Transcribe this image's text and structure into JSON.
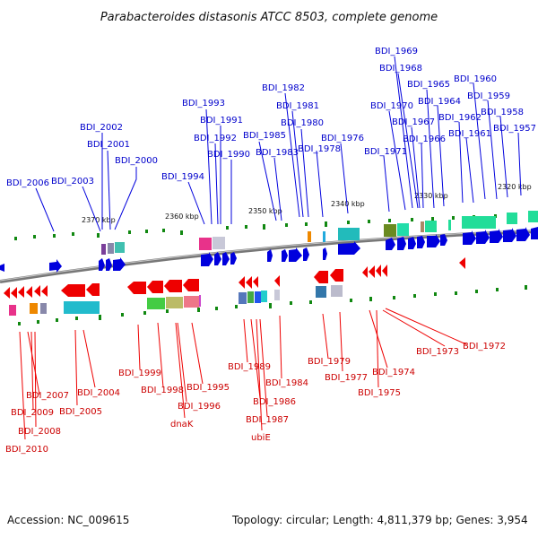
{
  "title": "Parabacteroides distasonis ATCC 8503, complete genome",
  "footer": {
    "accession": "Accession: NC_009615",
    "summary": "Topology: circular; Length: 4,811,379 bp; Genes: 3,954"
  },
  "scale_labels": [
    "2370 kbp",
    "2360 kbp",
    "2350 kbp",
    "2340 kbp",
    "2330 kbp",
    "2320 kbp"
  ],
  "colors": {
    "forward": "#0000dd",
    "reverse": "#ee0000",
    "backbone": "#777777",
    "tick": "#118811"
  },
  "forward_genes": [
    "BDI_2006",
    "BDI_2003",
    "BDI_2002",
    "BDI_2001",
    "BDI_2000",
    "BDI_1994",
    "BDI_1993",
    "BDI_1991",
    "BDI_1992",
    "BDI_1990",
    "BDI_1985",
    "BDI_1983",
    "BDI_1982",
    "BDI_1981",
    "BDI_1980",
    "BDI_1978",
    "BDI_1976",
    "BDI_1971",
    "BDI_1970",
    "BDI_1969",
    "BDI_1968",
    "BDI_1967",
    "BDI_1966",
    "BDI_1965",
    "BDI_1964",
    "BDI_1962",
    "BDI_1961",
    "BDI_1960",
    "BDI_1959",
    "BDI_1958",
    "BDI_1957"
  ],
  "reverse_genes": [
    "BDI_2007",
    "BDI_2009",
    "BDI_2008",
    "BDI_2010",
    "BDI_2004",
    "BDI_2005",
    "BDI_1999",
    "BDI_1998",
    "dnaK",
    "BDI_1996",
    "BDI_1995",
    "BDI_1989",
    "BDI_1984",
    "BDI_1986",
    "BDI_1987",
    "ubiE",
    "BDI_1979",
    "BDI_1977",
    "BDI_1974",
    "BDI_1975",
    "BDI_1973",
    "BDI_1972"
  ]
}
